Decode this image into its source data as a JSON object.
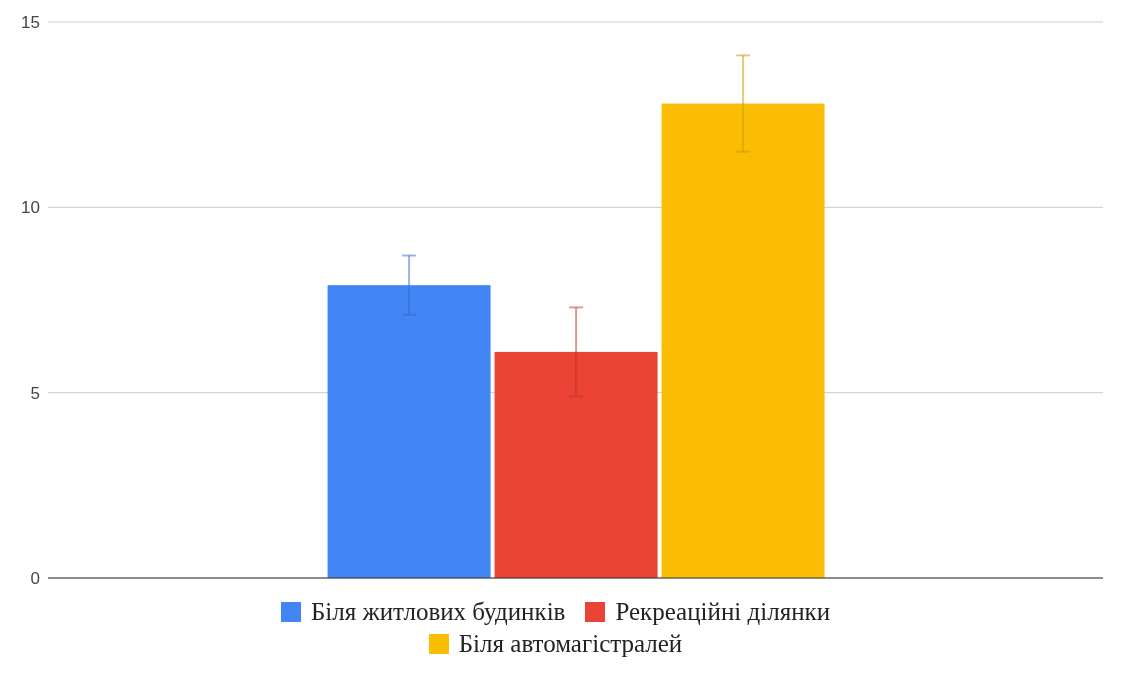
{
  "chart_data": {
    "type": "bar",
    "categories": [
      null
    ],
    "series": [
      {
        "name": "Біля житлових будинків",
        "color": "#4285f4",
        "values": [
          7.9
        ],
        "errors": [
          0.8
        ]
      },
      {
        "name": "Рекреаційні ділянки",
        "color": "#ea4335",
        "values": [
          6.1
        ],
        "errors": [
          1.2
        ]
      },
      {
        "name": "Біля автомагістралей",
        "color": "#fbbc04",
        "values": [
          12.8
        ],
        "errors": [
          1.3
        ]
      }
    ],
    "ylim": [
      0,
      15
    ],
    "yticks": [
      0,
      5,
      10,
      15
    ],
    "grid": "y",
    "legend": "bottom"
  }
}
